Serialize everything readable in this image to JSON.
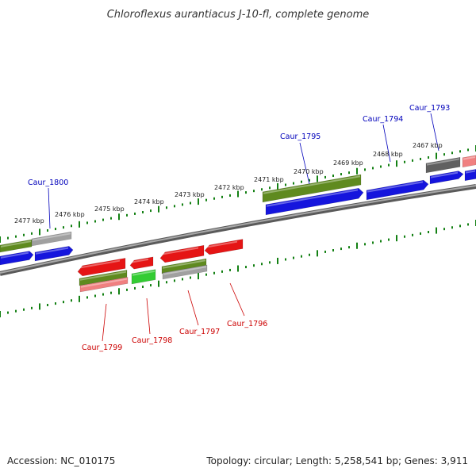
{
  "title": "Chloroflexus aurantiacus J-10-fl, complete genome",
  "footer": {
    "accession": "Accession: NC_010175",
    "topology": "Topology: circular; Length: 5,258,541 bp; Genes: 3,911"
  },
  "colors": {
    "backbone": "#7a7a7a",
    "ticks": "#138013",
    "forward_label": "#0000bb",
    "reverse_label": "#cc0000",
    "blue": "#1515dd",
    "red": "#e51515",
    "olive": "#5f8a1f",
    "green": "#33cc33",
    "gray": "#a0a0a0",
    "darkgray": "#606060",
    "pink": "#f08080"
  },
  "scale": {
    "unit": "kbp",
    "tick_labels": [
      "2477 kbp",
      "2476 kbp",
      "2475 kbp",
      "2474 kbp",
      "2473 kbp",
      "2472 kbp",
      "2471 kbp",
      "2470 kbp",
      "2469 kbp",
      "2468 kbp",
      "2467 kbp"
    ]
  },
  "genes": {
    "forward_labels": [
      "Caur_1800",
      "Caur_1795",
      "Caur_1794",
      "Caur_1793"
    ],
    "reverse_labels": [
      "Caur_1799",
      "Caur_1798",
      "Caur_1797",
      "Caur_1796"
    ]
  }
}
